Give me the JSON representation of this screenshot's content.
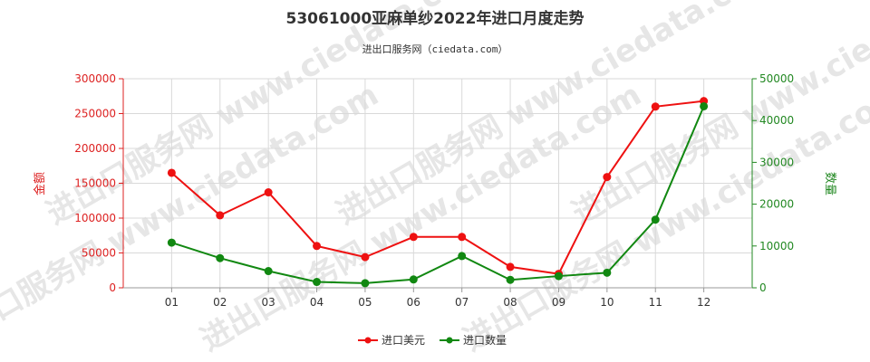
{
  "chart_data": {
    "type": "line",
    "title": "53061000亚麻单纱2022年进口月度走势",
    "subtitle": "进出口服务网（ciedata.com）",
    "watermark": "进出口服务网 www.ciedata.com",
    "categories": [
      "01",
      "02",
      "03",
      "04",
      "05",
      "06",
      "07",
      "08",
      "09",
      "10",
      "11",
      "12"
    ],
    "left_axis": {
      "label": "金额",
      "ylim": [
        0,
        300000
      ],
      "ticks": [
        "0",
        "50000",
        "100000",
        "150000",
        "200000",
        "250000",
        "300000"
      ],
      "color": "#dd2222"
    },
    "right_axis": {
      "label": "数量",
      "ylim": [
        0,
        50000
      ],
      "ticks": [
        "0",
        "10000",
        "20000",
        "30000",
        "40000",
        "50000"
      ],
      "color": "#228822"
    },
    "series": [
      {
        "name": "进口美元",
        "axis": "left",
        "color": "#ee1111",
        "values": [
          165000,
          104000,
          137000,
          60000,
          44000,
          73000,
          73000,
          30000,
          20000,
          159000,
          260000,
          268000
        ]
      },
      {
        "name": "进口数量",
        "axis": "right",
        "color": "#118811",
        "values": [
          10800,
          7100,
          4000,
          1400,
          1100,
          2000,
          7600,
          1900,
          2800,
          3600,
          16300,
          43400
        ]
      }
    ],
    "grid": true,
    "legend_position": "bottom-center"
  }
}
